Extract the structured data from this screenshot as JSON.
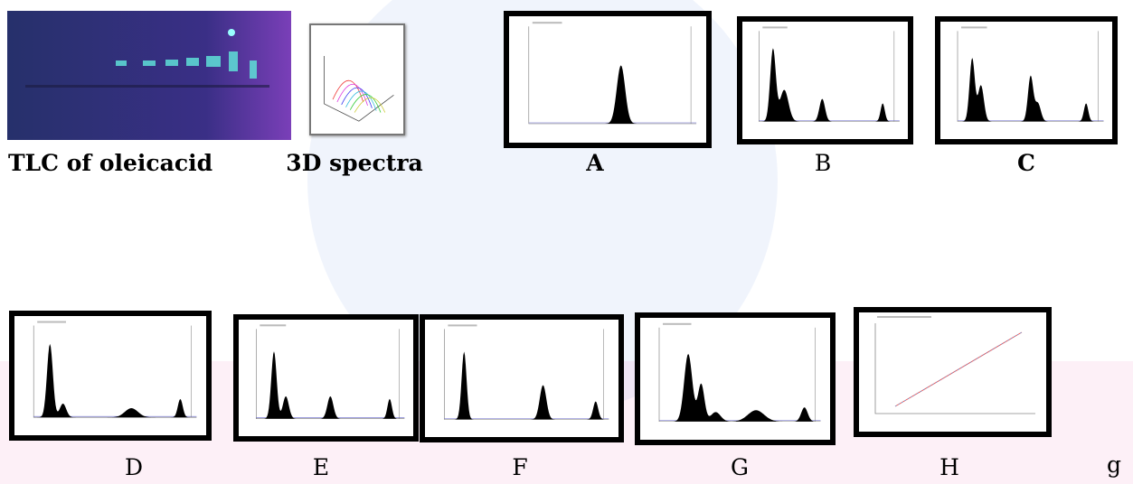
{
  "panels": [
    {
      "label": "TLC of oleicacid"
    },
    {
      "label": "3D spectra"
    },
    {
      "label": "A"
    },
    {
      "label": "B"
    },
    {
      "label": "C"
    },
    {
      "label": "D"
    },
    {
      "label": "E"
    },
    {
      "label": "F"
    },
    {
      "label": "G"
    },
    {
      "label": "H"
    }
  ],
  "stray_text": "g"
}
